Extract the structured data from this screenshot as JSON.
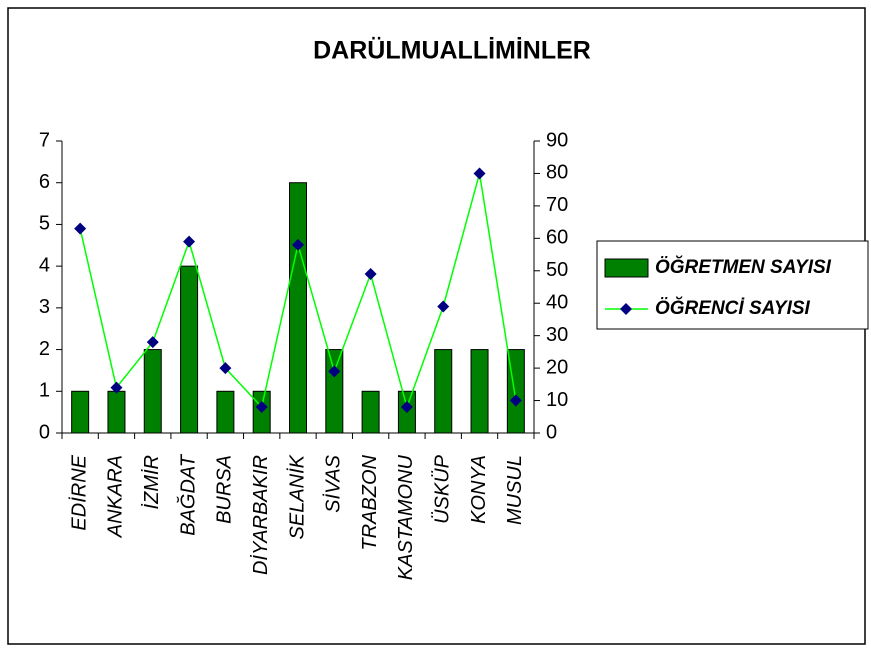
{
  "chart_data": {
    "type": "bar",
    "title": "DARÜLMUALLİMİNLER",
    "categories": [
      "EDİRNE",
      "ANKARA",
      "İZMİR",
      "BAĞDAT",
      "BURSA",
      "DİYARBAKIR",
      "SELANİK",
      "SİVAS",
      "TRABZON",
      "KASTAMONU",
      "ÜSKÜP",
      "KONYA",
      "MUSUL"
    ],
    "series": [
      {
        "name": "ÖĞRETMEN SAYISI",
        "type": "bar",
        "color": "#008000",
        "values": [
          1,
          1,
          2,
          4,
          1,
          1,
          6,
          2,
          1,
          1,
          2,
          2,
          2
        ]
      },
      {
        "name": "ÖĞRENCİ SAYISI",
        "type": "line",
        "axis": "y2",
        "color": "#00ff00",
        "marker_color": "#000080",
        "values": [
          63,
          14,
          28,
          59,
          20,
          8,
          58,
          19,
          49,
          8,
          39,
          80,
          10
        ]
      }
    ],
    "ylim": [
      0,
      7
    ],
    "yticks": [
      0,
      1,
      2,
      3,
      4,
      5,
      6,
      7
    ],
    "y2lim": [
      0,
      90
    ],
    "y2ticks": [
      0,
      10,
      20,
      30,
      40,
      50,
      60,
      70,
      80,
      90
    ],
    "legend": "right"
  }
}
